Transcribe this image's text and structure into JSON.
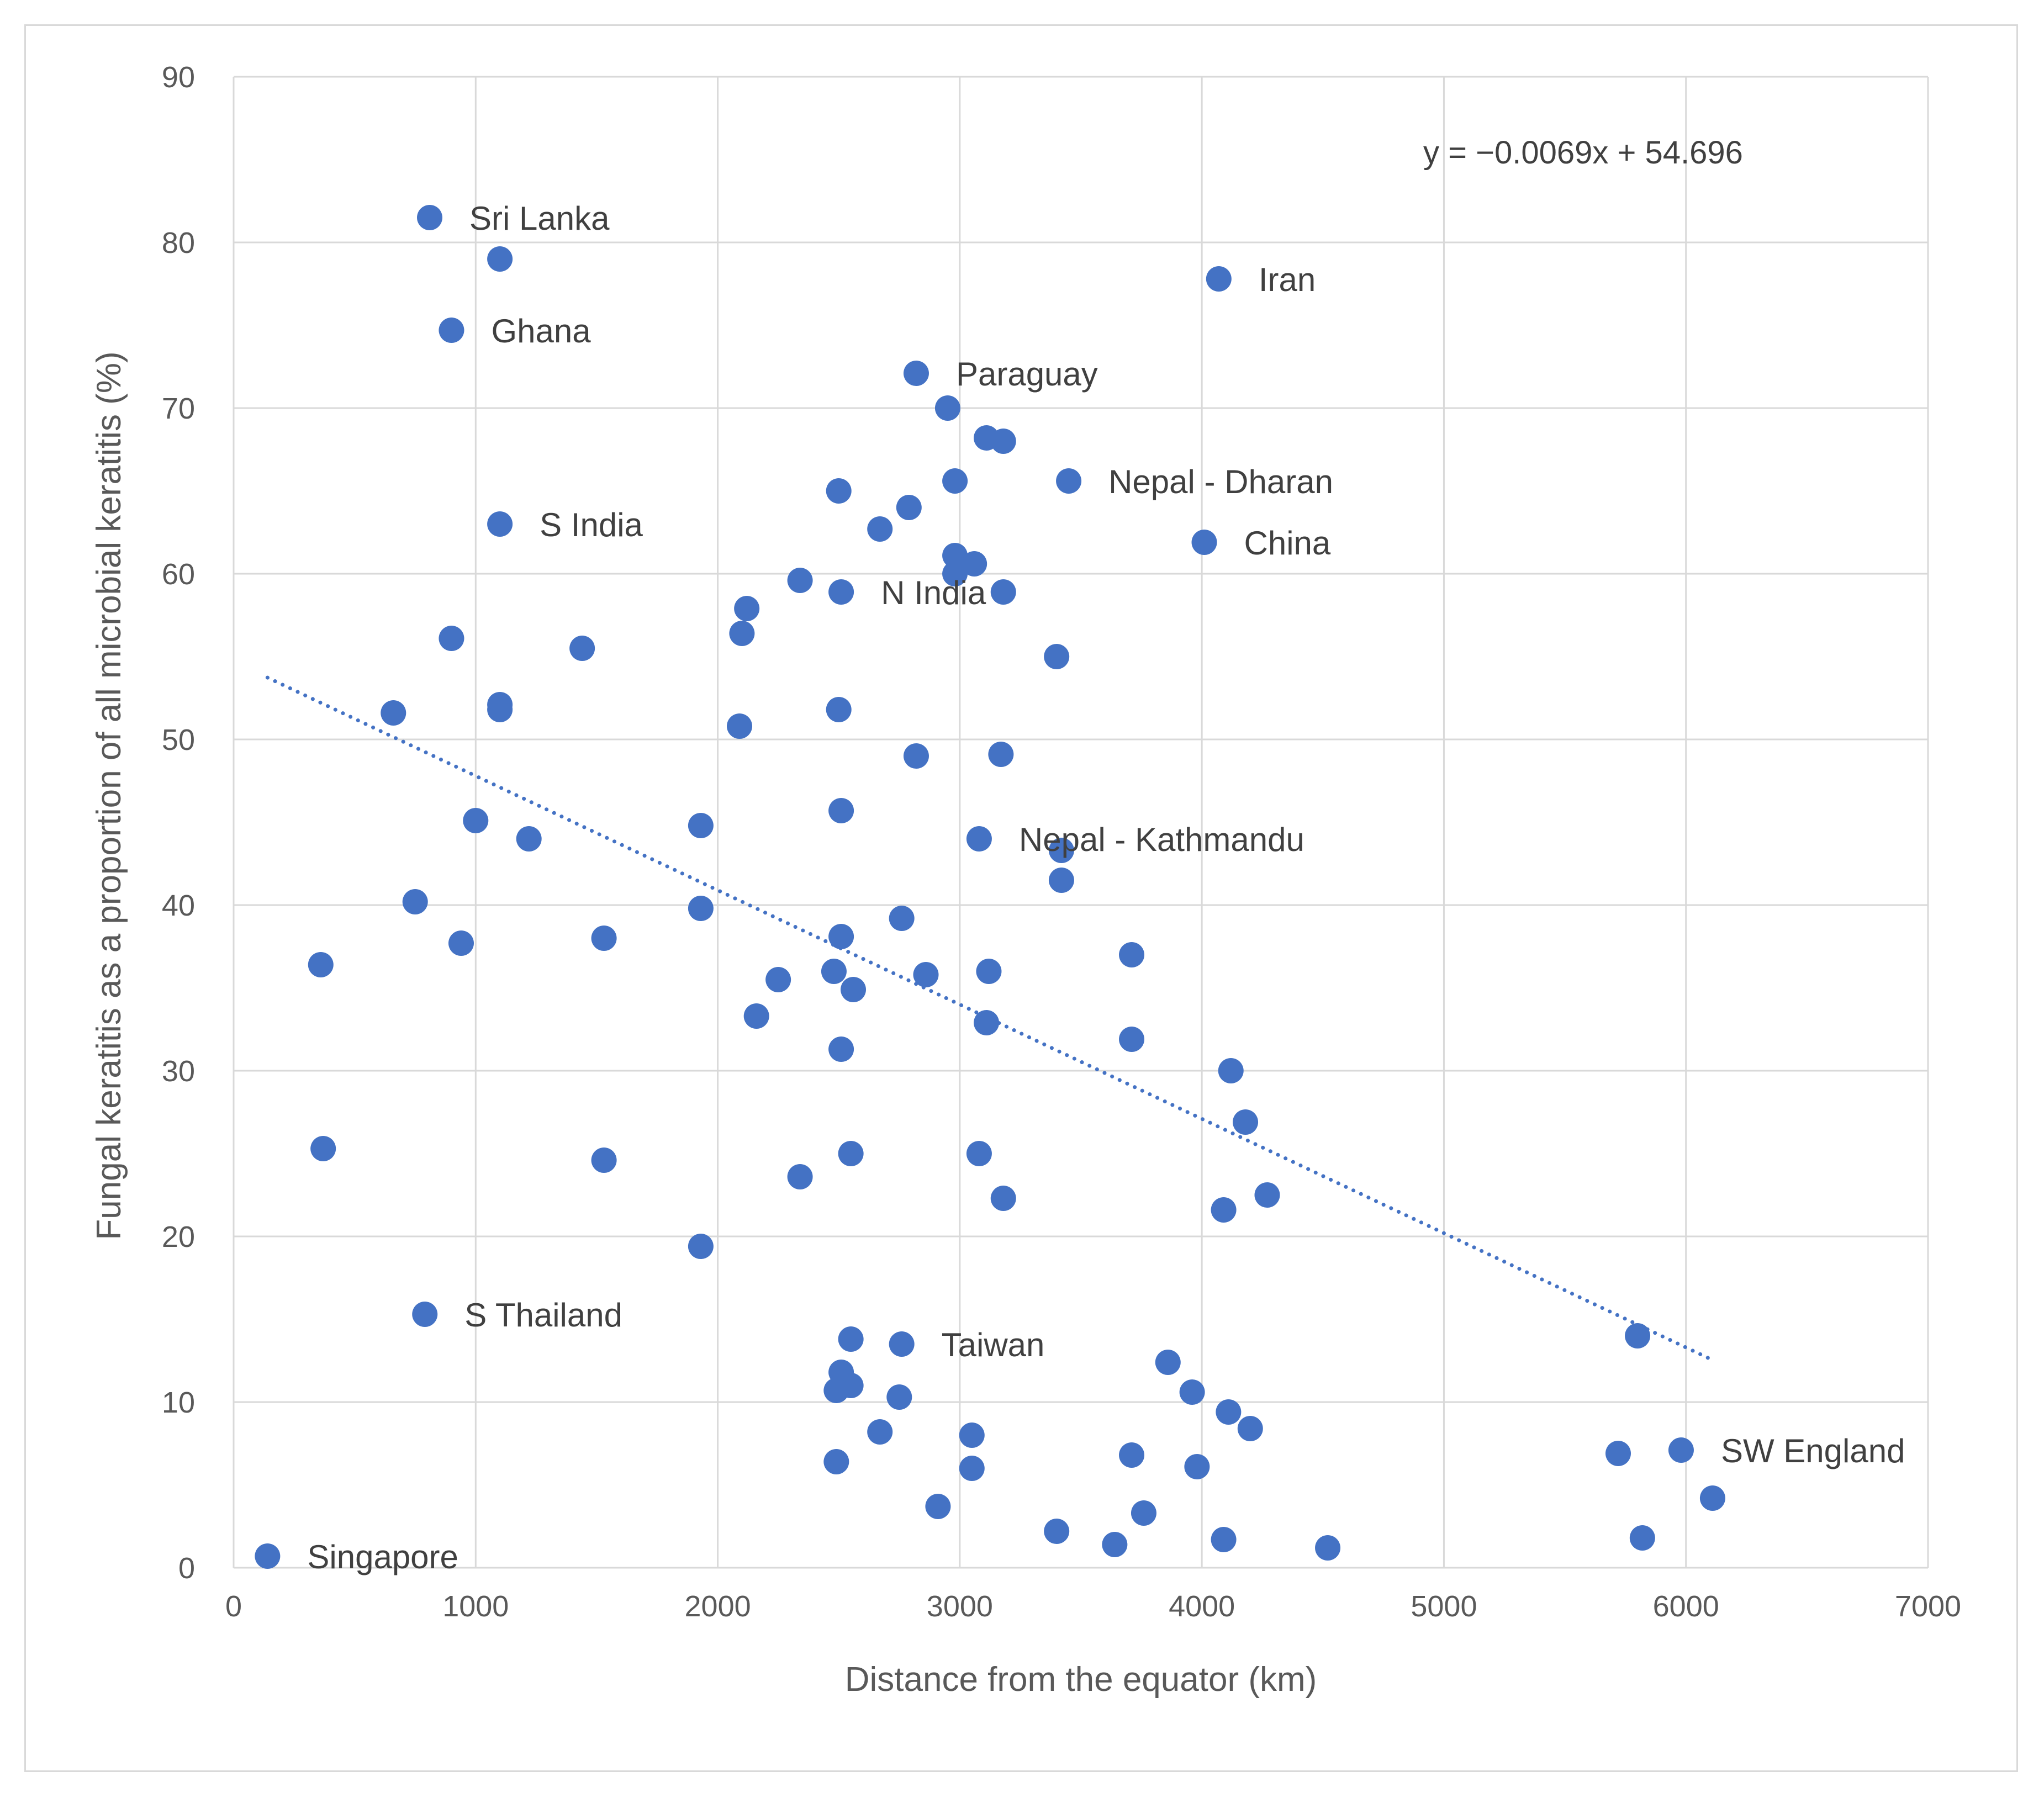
{
  "chart_data": {
    "type": "scatter",
    "title": "",
    "xlabel": "Distance from the equator (km)",
    "ylabel": "Fungal keratitis as a proportion of all microbial keratitis (%)",
    "xlim": [
      0,
      7000
    ],
    "ylim": [
      0,
      90
    ],
    "xticks": [
      "0",
      "1000",
      "2000",
      "3000",
      "4000",
      "5000",
      "6000",
      "7000"
    ],
    "yticks": [
      "0",
      "10",
      "20",
      "30",
      "40",
      "50",
      "60",
      "70",
      "80",
      "90"
    ],
    "grid": true,
    "legend": "none",
    "marker_color": "#4472c4",
    "trendline": {
      "equation": "y = −0.0069x + 54.696",
      "slope": -0.0069,
      "intercept": 54.696,
      "x_range": [
        140,
        6100
      ],
      "style": "dotted"
    },
    "points": [
      {
        "x": 140,
        "y": 0.7,
        "label": "Singapore"
      },
      {
        "x": 810,
        "y": 81.5,
        "label": "Sri Lanka"
      },
      {
        "x": 1100,
        "y": 79
      },
      {
        "x": 900,
        "y": 74.7,
        "label": "Ghana"
      },
      {
        "x": 1100,
        "y": 63,
        "label": "S India"
      },
      {
        "x": 4070,
        "y": 77.8,
        "label": "Iran"
      },
      {
        "x": 2820,
        "y": 72.1,
        "label": "Paraguay"
      },
      {
        "x": 2950,
        "y": 70
      },
      {
        "x": 3110,
        "y": 68.2
      },
      {
        "x": 3180,
        "y": 68
      },
      {
        "x": 3450,
        "y": 65.6,
        "label": "Nepal - Dharan"
      },
      {
        "x": 2980,
        "y": 65.6
      },
      {
        "x": 2500,
        "y": 65
      },
      {
        "x": 2790,
        "y": 64
      },
      {
        "x": 2670,
        "y": 62.7
      },
      {
        "x": 4010,
        "y": 61.9,
        "label": "China"
      },
      {
        "x": 2980,
        "y": 61.1
      },
      {
        "x": 3060,
        "y": 60.6
      },
      {
        "x": 2980,
        "y": 60
      },
      {
        "x": 2340,
        "y": 59.6
      },
      {
        "x": 2510,
        "y": 58.9,
        "label": "N India"
      },
      {
        "x": 3180,
        "y": 58.9
      },
      {
        "x": 2120,
        "y": 57.9
      },
      {
        "x": 2100,
        "y": 56.4
      },
      {
        "x": 900,
        "y": 56.1
      },
      {
        "x": 1440,
        "y": 55.5
      },
      {
        "x": 3400,
        "y": 55
      },
      {
        "x": 1100,
        "y": 52.1
      },
      {
        "x": 1100,
        "y": 51.8
      },
      {
        "x": 660,
        "y": 51.6
      },
      {
        "x": 2500,
        "y": 51.8
      },
      {
        "x": 2090,
        "y": 50.8
      },
      {
        "x": 2820,
        "y": 49
      },
      {
        "x": 3170,
        "y": 49.1
      },
      {
        "x": 2510,
        "y": 45.7
      },
      {
        "x": 1000,
        "y": 45.1
      },
      {
        "x": 1930,
        "y": 44.8
      },
      {
        "x": 1220,
        "y": 44
      },
      {
        "x": 3080,
        "y": 44,
        "label": "Nepal - Kathmandu"
      },
      {
        "x": 3420,
        "y": 43.3
      },
      {
        "x": 3420,
        "y": 41.5
      },
      {
        "x": 750,
        "y": 40.2
      },
      {
        "x": 1930,
        "y": 39.8
      },
      {
        "x": 2760,
        "y": 39.2
      },
      {
        "x": 2510,
        "y": 38.1
      },
      {
        "x": 1530,
        "y": 38
      },
      {
        "x": 940,
        "y": 37.7
      },
      {
        "x": 3710,
        "y": 37
      },
      {
        "x": 360,
        "y": 36.4
      },
      {
        "x": 2480,
        "y": 36
      },
      {
        "x": 3120,
        "y": 36
      },
      {
        "x": 2860,
        "y": 35.8
      },
      {
        "x": 2250,
        "y": 35.5
      },
      {
        "x": 2560,
        "y": 34.9
      },
      {
        "x": 2160,
        "y": 33.3
      },
      {
        "x": 3110,
        "y": 32.9
      },
      {
        "x": 3710,
        "y": 31.9
      },
      {
        "x": 2510,
        "y": 31.3
      },
      {
        "x": 4120,
        "y": 30
      },
      {
        "x": 4180,
        "y": 26.9
      },
      {
        "x": 370,
        "y": 25.3
      },
      {
        "x": 2550,
        "y": 25
      },
      {
        "x": 3080,
        "y": 25
      },
      {
        "x": 1530,
        "y": 24.6
      },
      {
        "x": 2340,
        "y": 23.6
      },
      {
        "x": 4270,
        "y": 22.5
      },
      {
        "x": 3180,
        "y": 22.3
      },
      {
        "x": 4090,
        "y": 21.6
      },
      {
        "x": 1930,
        "y": 19.4
      },
      {
        "x": 790,
        "y": 15.3,
        "label": "S Thailand"
      },
      {
        "x": 5800,
        "y": 14
      },
      {
        "x": 2550,
        "y": 13.8
      },
      {
        "x": 2760,
        "y": 13.5,
        "label": "Taiwan"
      },
      {
        "x": 3860,
        "y": 12.4
      },
      {
        "x": 2510,
        "y": 11.8
      },
      {
        "x": 2550,
        "y": 11
      },
      {
        "x": 2490,
        "y": 10.7
      },
      {
        "x": 3960,
        "y": 10.6
      },
      {
        "x": 2750,
        "y": 10.3
      },
      {
        "x": 4110,
        "y": 9.4
      },
      {
        "x": 4200,
        "y": 8.4
      },
      {
        "x": 2670,
        "y": 8.2
      },
      {
        "x": 3050,
        "y": 8
      },
      {
        "x": 5980,
        "y": 7.1,
        "label": "SW England"
      },
      {
        "x": 5720,
        "y": 6.9
      },
      {
        "x": 3710,
        "y": 6.8
      },
      {
        "x": 2490,
        "y": 6.4
      },
      {
        "x": 3980,
        "y": 6.1
      },
      {
        "x": 3050,
        "y": 6
      },
      {
        "x": 6110,
        "y": 4.2
      },
      {
        "x": 2910,
        "y": 3.7
      },
      {
        "x": 3760,
        "y": 3.3
      },
      {
        "x": 3400,
        "y": 2.2
      },
      {
        "x": 5820,
        "y": 1.8
      },
      {
        "x": 4090,
        "y": 1.7
      },
      {
        "x": 3640,
        "y": 1.4
      },
      {
        "x": 4520,
        "y": 1.2
      }
    ]
  }
}
